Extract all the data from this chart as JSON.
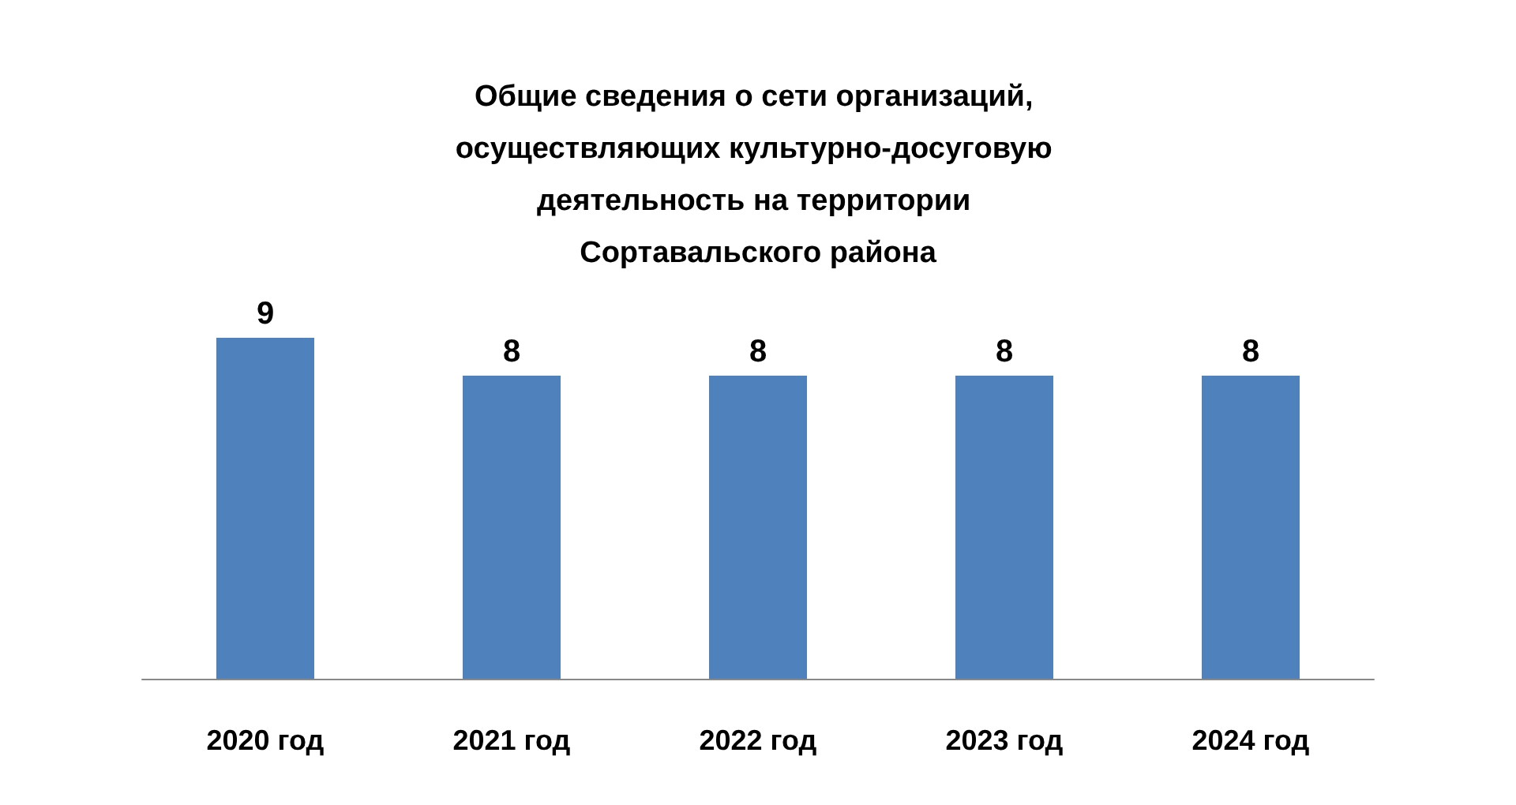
{
  "chart_data": {
    "type": "bar",
    "title": "Общие сведения о сети организаций, осуществляющих культурно-досуговую деятельность на территории Сортавальского района",
    "categories": [
      "2020 год",
      "2021 год",
      "2022 год",
      "2023 год",
      "2024 год"
    ],
    "values": [
      9,
      8,
      8,
      8,
      8
    ],
    "color": "#4f81bd",
    "data_labels": true,
    "tick_labels": "x",
    "grid": false
  }
}
